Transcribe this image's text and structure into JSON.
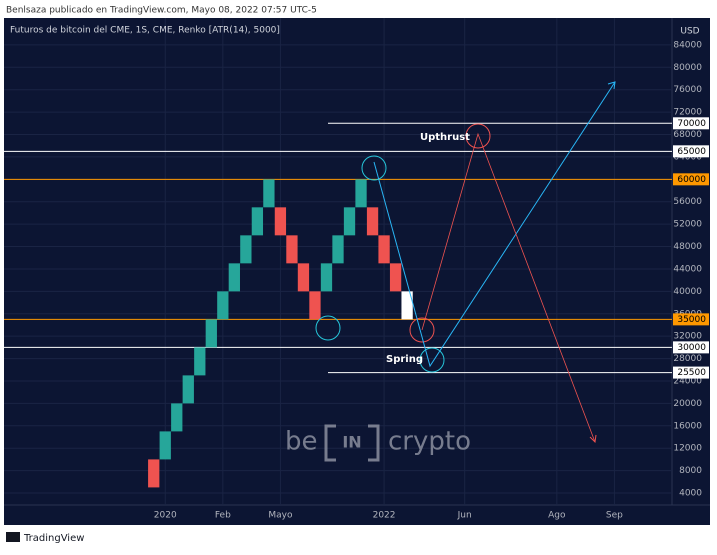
{
  "header": "Benlsaza publicado en TradingView.com, Mayo 08, 2022 07:57 UTC-5",
  "footer": "TradingView",
  "chart_data": {
    "type": "renko",
    "title": "Futuros de bitcoin del CME, 1S, CME, Renko [ATR(14), 5000]",
    "currency": "USD",
    "open": [
      10000,
      10000,
      15000,
      20000,
      25000,
      30000,
      35000,
      40000,
      45000,
      50000,
      55000,
      55000,
      50000,
      45000,
      40000,
      40000,
      45000,
      50000,
      55000,
      55000,
      50000,
      45000,
      40000
    ],
    "close": [
      5000,
      15000,
      20000,
      25000,
      30000,
      35000,
      40000,
      45000,
      50000,
      55000,
      60000,
      50000,
      45000,
      40000,
      35000,
      45000,
      50000,
      55000,
      60000,
      50000,
      45000,
      40000,
      35000
    ],
    "up_color": "#26a69a",
    "down_color": "#ef5350",
    "live_color": "#ffffff",
    "xlim": [
      -13,
      45
    ],
    "xticks": [
      {
        "value": 1,
        "label": "2020"
      },
      {
        "value": 6,
        "label": "Feb"
      },
      {
        "value": 11,
        "label": "Mayo"
      },
      {
        "value": 20,
        "label": "2022"
      },
      {
        "value": 27,
        "label": "Jun"
      },
      {
        "value": 35,
        "label": "Ago"
      },
      {
        "value": 40,
        "label": "Sep"
      }
    ],
    "ylim": [
      1860,
      88800
    ],
    "yticks": [
      4000,
      8000,
      12000,
      16000,
      20000,
      24000,
      28000,
      32000,
      36000,
      40000,
      44000,
      48000,
      52000,
      56000,
      60000,
      64000,
      68000,
      72000,
      76000,
      80000,
      84000
    ],
    "grid": true,
    "levels": [
      {
        "value": 70000,
        "color": "#ffffff",
        "extended": false
      },
      {
        "value": 65000,
        "color": "#ffffff",
        "extended": true
      },
      {
        "value": 60000,
        "color": "#ff9800",
        "extended": true
      },
      {
        "value": 35000,
        "color": "#ff9800",
        "extended": true
      },
      {
        "value": 30000,
        "color": "#ffffff",
        "extended": true
      },
      {
        "value": 25500,
        "color": "#ffffff",
        "extended": false
      }
    ],
    "annotations": [
      "Upthrust",
      "Spring"
    ],
    "watermark": [
      "be",
      "IN",
      "crypto"
    ]
  }
}
